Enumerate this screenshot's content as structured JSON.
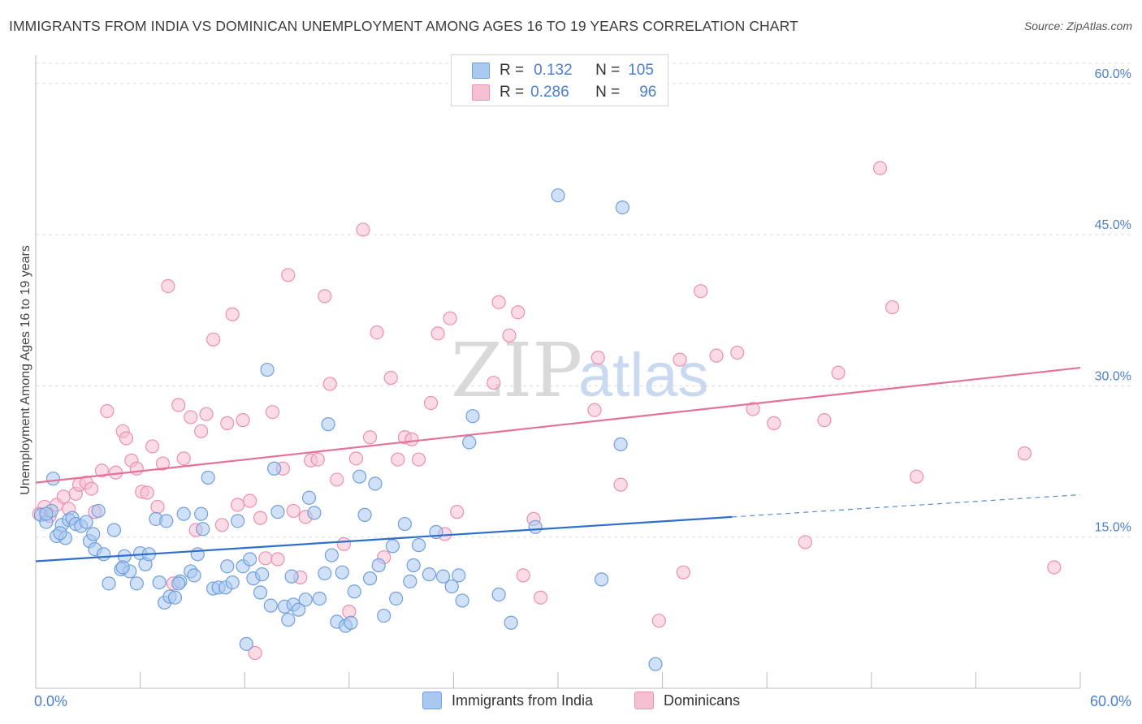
{
  "header": {
    "title": "IMMIGRANTS FROM INDIA VS DOMINICAN UNEMPLOYMENT AMONG AGES 16 TO 19 YEARS CORRELATION CHART",
    "source": "Source: ZipAtlas.com"
  },
  "legend": {
    "r_label": "R =",
    "n_label": "N =",
    "rows": [
      {
        "r": "0.132",
        "n": "105"
      },
      {
        "r": "0.286",
        "n": "96"
      }
    ]
  },
  "watermark": {
    "part1": "ZIP",
    "part2": "atlas"
  },
  "colors": {
    "blue_fill": "#a9c8f0",
    "blue_stroke": "#6f9fdc",
    "blue_line": "#2f6fcb",
    "pink_fill": "#f7bfd2",
    "pink_stroke": "#ec8fb0",
    "pink_line": "#e5719a",
    "axis_text": "#4a7fd0",
    "grid": "#dddddd"
  },
  "chart_data": {
    "type": "scatter",
    "title": "IMMIGRANTS FROM INDIA VS DOMINICAN UNEMPLOYMENT AMONG AGES 16 TO 19 YEARS CORRELATION CHART",
    "ylabel": "Unemployment Among Ages 16 to 19 years",
    "xlabel": "",
    "xlim": [
      0,
      60
    ],
    "ylim": [
      0,
      62
    ],
    "x_tick_labels": [
      "0.0%",
      "60.0%"
    ],
    "y_ticks": [
      15,
      30,
      45,
      60
    ],
    "y_tick_labels": [
      "15.0%",
      "30.0%",
      "45.0%",
      "60.0%"
    ],
    "grid": true,
    "series": [
      {
        "name": "Immigrants from India",
        "color": "blue",
        "r": 0.132,
        "n": 105,
        "trend": {
          "x0": 0,
          "y0": 12.6,
          "x1": 40,
          "y1": 17.0,
          "dash_x1": 60,
          "dash_y1": 19.2
        },
        "points": [
          [
            0.3,
            17.2
          ],
          [
            0.6,
            16.5
          ],
          [
            0.9,
            17.6
          ],
          [
            1.0,
            20.8
          ],
          [
            1.2,
            15.1
          ],
          [
            1.5,
            16.2
          ],
          [
            1.7,
            14.9
          ],
          [
            1.9,
            16.7
          ],
          [
            2.1,
            16.9
          ],
          [
            2.3,
            16.3
          ],
          [
            2.6,
            16.1
          ],
          [
            2.9,
            16.5
          ],
          [
            3.1,
            14.6
          ],
          [
            3.3,
            15.3
          ],
          [
            3.4,
            13.8
          ],
          [
            3.6,
            17.6
          ],
          [
            3.9,
            13.3
          ],
          [
            4.2,
            10.4
          ],
          [
            4.5,
            15.7
          ],
          [
            4.9,
            11.8
          ],
          [
            5.1,
            13.1
          ],
          [
            5.4,
            11.6
          ],
          [
            5.8,
            10.4
          ],
          [
            6.0,
            13.4
          ],
          [
            6.3,
            12.3
          ],
          [
            6.5,
            13.3
          ],
          [
            6.9,
            16.8
          ],
          [
            7.1,
            10.5
          ],
          [
            7.4,
            8.5
          ],
          [
            7.7,
            9.1
          ],
          [
            7.5,
            16.6
          ],
          [
            8.0,
            9.0
          ],
          [
            8.3,
            10.6
          ],
          [
            8.5,
            17.3
          ],
          [
            8.9,
            11.6
          ],
          [
            9.1,
            11.2
          ],
          [
            9.3,
            13.3
          ],
          [
            9.5,
            17.3
          ],
          [
            9.6,
            15.8
          ],
          [
            9.9,
            20.9
          ],
          [
            10.2,
            9.9
          ],
          [
            10.5,
            10.0
          ],
          [
            10.9,
            10.0
          ],
          [
            11.0,
            12.1
          ],
          [
            11.3,
            10.5
          ],
          [
            11.6,
            16.6
          ],
          [
            11.9,
            12.1
          ],
          [
            12.3,
            12.8
          ],
          [
            12.5,
            10.9
          ],
          [
            12.9,
            9.5
          ],
          [
            12.1,
            4.4
          ],
          [
            13.0,
            11.3
          ],
          [
            13.3,
            31.6
          ],
          [
            13.5,
            8.2
          ],
          [
            13.7,
            21.8
          ],
          [
            13.9,
            17.5
          ],
          [
            14.3,
            8.1
          ],
          [
            14.5,
            6.8
          ],
          [
            14.8,
            8.3
          ],
          [
            14.7,
            11.1
          ],
          [
            15.1,
            7.8
          ],
          [
            15.5,
            8.8
          ],
          [
            15.7,
            18.9
          ],
          [
            16.0,
            17.4
          ],
          [
            16.3,
            8.9
          ],
          [
            16.6,
            11.4
          ],
          [
            16.8,
            26.2
          ],
          [
            17.0,
            13.2
          ],
          [
            17.3,
            6.6
          ],
          [
            17.6,
            11.5
          ],
          [
            17.8,
            6.2
          ],
          [
            18.1,
            6.5
          ],
          [
            18.3,
            9.6
          ],
          [
            18.6,
            21.0
          ],
          [
            18.9,
            17.2
          ],
          [
            19.2,
            10.9
          ],
          [
            19.5,
            20.3
          ],
          [
            19.7,
            12.2
          ],
          [
            20.0,
            7.2
          ],
          [
            20.5,
            14.1
          ],
          [
            20.7,
            8.9
          ],
          [
            21.2,
            16.3
          ],
          [
            21.5,
            10.6
          ],
          [
            21.7,
            12.2
          ],
          [
            22.0,
            14.2
          ],
          [
            22.6,
            11.3
          ],
          [
            23.0,
            15.5
          ],
          [
            23.4,
            11.1
          ],
          [
            23.9,
            10.1
          ],
          [
            24.3,
            11.2
          ],
          [
            24.5,
            8.7
          ],
          [
            24.9,
            24.4
          ],
          [
            25.1,
            27.0
          ],
          [
            26.6,
            9.3
          ],
          [
            27.3,
            6.5
          ],
          [
            28.7,
            16.0
          ],
          [
            30.0,
            48.9
          ],
          [
            32.5,
            10.8
          ],
          [
            33.6,
            24.2
          ],
          [
            33.7,
            47.7
          ],
          [
            35.6,
            2.4
          ],
          [
            0.6,
            17.3
          ],
          [
            1.4,
            15.4
          ],
          [
            5.0,
            12.0
          ],
          [
            8.2,
            10.4
          ]
        ]
      },
      {
        "name": "Dominicans",
        "color": "pink",
        "r": 0.286,
        "n": 96,
        "trend": {
          "x0": 0,
          "y0": 20.4,
          "x1": 60,
          "y1": 31.8
        },
        "points": [
          [
            0.2,
            17.3
          ],
          [
            0.5,
            18.0
          ],
          [
            0.8,
            17.1
          ],
          [
            1.2,
            18.2
          ],
          [
            1.6,
            19.0
          ],
          [
            1.9,
            17.8
          ],
          [
            2.3,
            19.3
          ],
          [
            2.5,
            20.2
          ],
          [
            2.9,
            20.4
          ],
          [
            3.2,
            19.8
          ],
          [
            3.4,
            17.5
          ],
          [
            3.8,
            21.6
          ],
          [
            4.1,
            27.5
          ],
          [
            4.6,
            21.4
          ],
          [
            5.0,
            25.5
          ],
          [
            5.2,
            24.8
          ],
          [
            5.5,
            22.6
          ],
          [
            5.8,
            21.8
          ],
          [
            6.1,
            19.5
          ],
          [
            6.4,
            19.4
          ],
          [
            6.7,
            24.0
          ],
          [
            7.0,
            18.0
          ],
          [
            7.3,
            22.3
          ],
          [
            7.6,
            39.9
          ],
          [
            7.9,
            10.4
          ],
          [
            8.2,
            28.1
          ],
          [
            8.5,
            22.8
          ],
          [
            8.9,
            26.9
          ],
          [
            9.2,
            15.7
          ],
          [
            9.5,
            25.5
          ],
          [
            9.8,
            27.2
          ],
          [
            10.2,
            34.6
          ],
          [
            10.7,
            16.2
          ],
          [
            11.0,
            26.3
          ],
          [
            11.3,
            37.1
          ],
          [
            11.6,
            18.2
          ],
          [
            11.9,
            26.6
          ],
          [
            12.3,
            18.6
          ],
          [
            12.6,
            3.5
          ],
          [
            12.9,
            16.9
          ],
          [
            13.2,
            12.9
          ],
          [
            13.6,
            27.4
          ],
          [
            13.9,
            12.8
          ],
          [
            14.2,
            21.8
          ],
          [
            14.5,
            41.0
          ],
          [
            14.8,
            17.6
          ],
          [
            15.2,
            11.0
          ],
          [
            15.5,
            17.0
          ],
          [
            15.8,
            22.6
          ],
          [
            16.2,
            22.7
          ],
          [
            16.6,
            38.9
          ],
          [
            16.9,
            30.2
          ],
          [
            17.3,
            20.7
          ],
          [
            17.7,
            14.3
          ],
          [
            18.0,
            7.6
          ],
          [
            18.4,
            22.8
          ],
          [
            18.8,
            45.5
          ],
          [
            19.2,
            24.9
          ],
          [
            19.6,
            35.3
          ],
          [
            20.0,
            13.0
          ],
          [
            20.4,
            30.8
          ],
          [
            20.8,
            22.7
          ],
          [
            21.2,
            24.9
          ],
          [
            21.6,
            24.7
          ],
          [
            22.0,
            22.7
          ],
          [
            22.7,
            28.3
          ],
          [
            23.1,
            35.2
          ],
          [
            23.5,
            15.3
          ],
          [
            23.8,
            36.7
          ],
          [
            24.2,
            17.5
          ],
          [
            26.6,
            38.3
          ],
          [
            26.3,
            30.3
          ],
          [
            27.2,
            35.0
          ],
          [
            27.7,
            37.3
          ],
          [
            28.0,
            11.2
          ],
          [
            28.6,
            16.8
          ],
          [
            29.0,
            9.0
          ],
          [
            32.1,
            27.6
          ],
          [
            32.3,
            32.8
          ],
          [
            33.6,
            20.2
          ],
          [
            35.8,
            6.7
          ],
          [
            37.0,
            32.6
          ],
          [
            37.2,
            11.5
          ],
          [
            38.2,
            39.4
          ],
          [
            39.1,
            33.0
          ],
          [
            40.3,
            33.3
          ],
          [
            41.2,
            27.7
          ],
          [
            42.4,
            26.3
          ],
          [
            44.2,
            14.5
          ],
          [
            45.3,
            26.6
          ],
          [
            46.1,
            31.3
          ],
          [
            48.5,
            51.6
          ],
          [
            49.2,
            37.8
          ],
          [
            50.6,
            21.0
          ],
          [
            56.8,
            23.3
          ],
          [
            58.5,
            12.0
          ]
        ]
      }
    ]
  },
  "bottom_legend": [
    {
      "label": "Immigrants from India"
    },
    {
      "label": "Dominicans"
    }
  ]
}
